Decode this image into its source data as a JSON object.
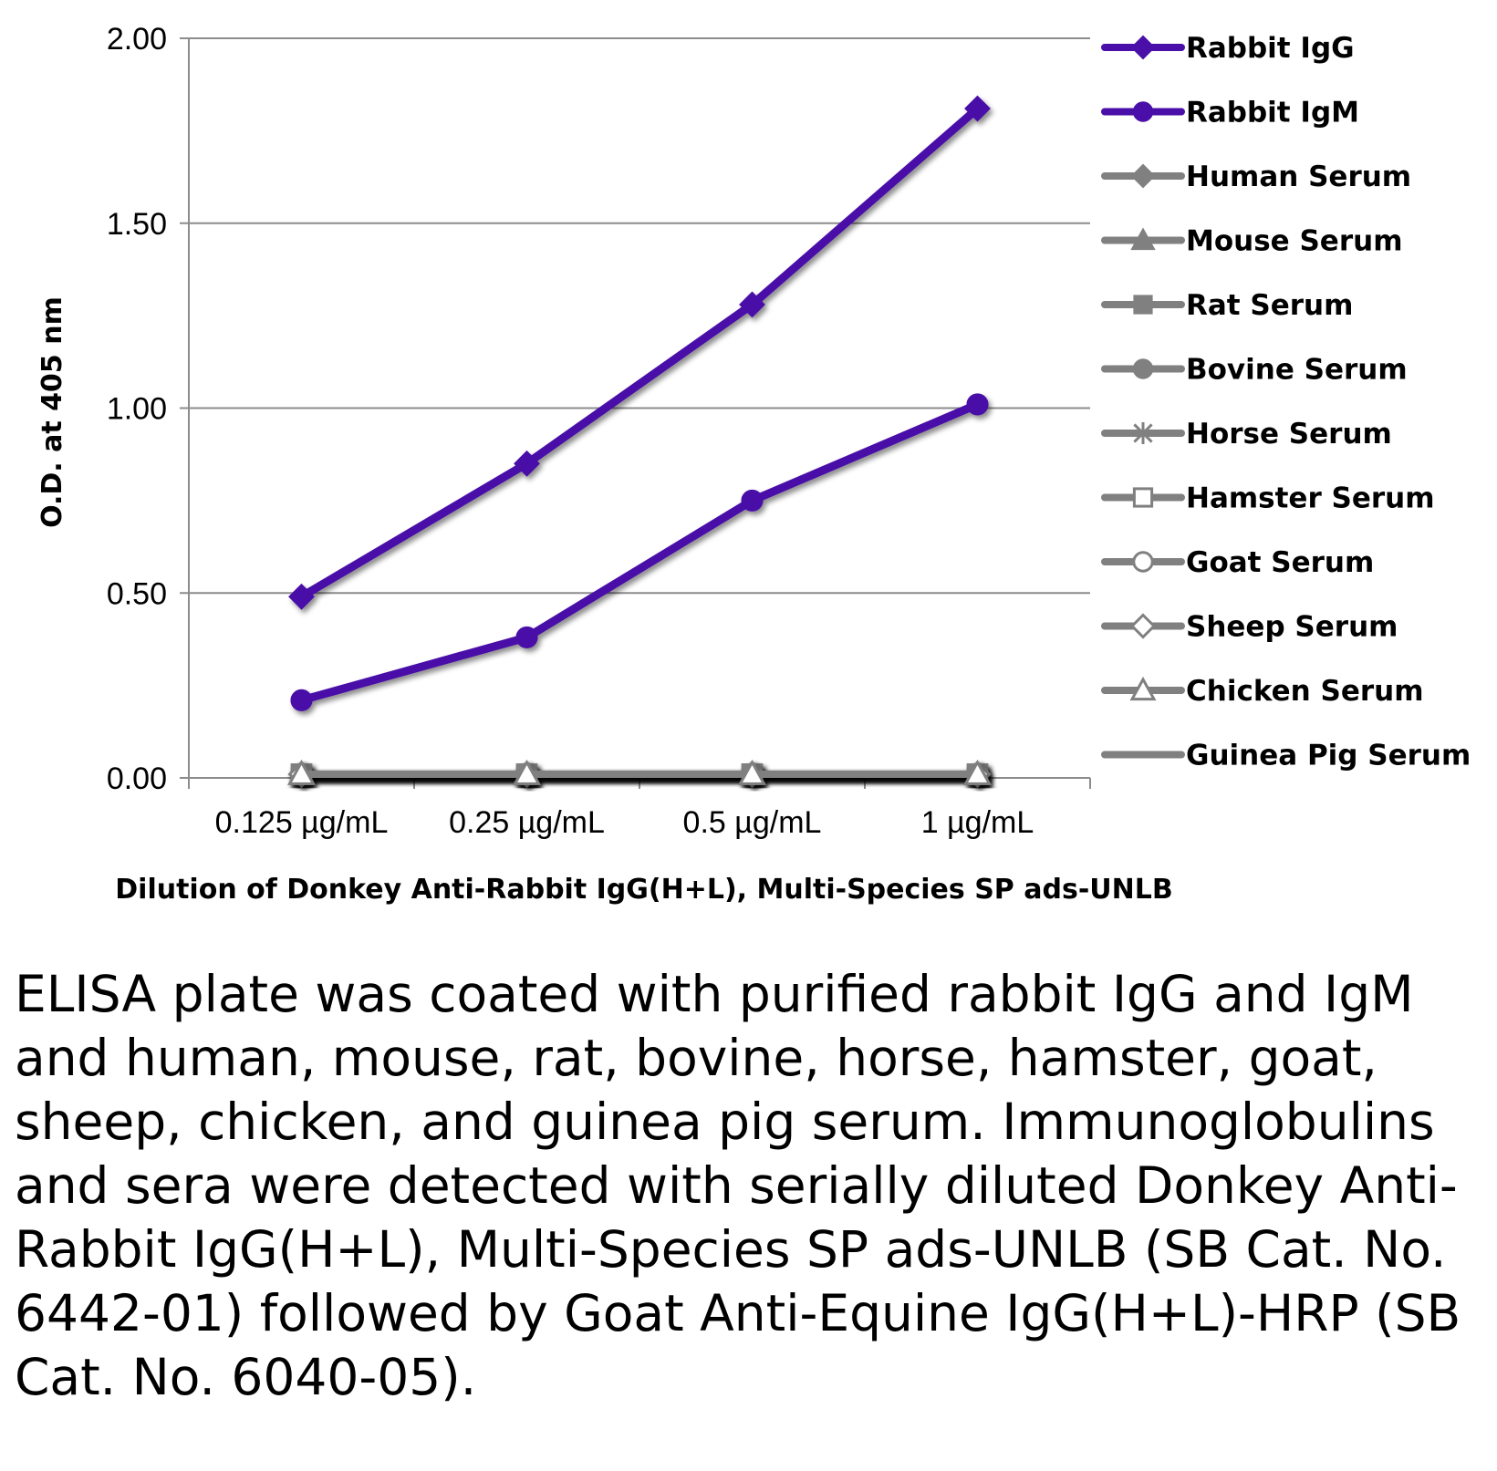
{
  "chart_data": {
    "type": "line",
    "xlabel": "Dilution of Donkey Anti-Rabbit IgG(H+L), Multi-Species SP ads-UNLB",
    "ylabel": "O.D. at 405 nm",
    "ylim": [
      0,
      2
    ],
    "yticks": [
      "0.00",
      "0.50",
      "1.00",
      "1.50",
      "2.00"
    ],
    "categories": [
      "0.125 µg/mL",
      "0.25 µg/mL",
      "0.5 µg/mL",
      "1 µg/mL"
    ],
    "grid": true,
    "legend_position": "right",
    "series": [
      {
        "name": "Rabbit IgG",
        "values": [
          0.49,
          0.85,
          1.28,
          1.81
        ],
        "color": "#4a0fa8",
        "marker": "diamond"
      },
      {
        "name": "Rabbit IgM",
        "values": [
          0.21,
          0.38,
          0.75,
          1.01
        ],
        "color": "#4a0fa8",
        "marker": "circle"
      },
      {
        "name": "Human Serum",
        "values": [
          0.01,
          0.01,
          0.01,
          0.01
        ],
        "color": "#808080",
        "marker": "diamond"
      },
      {
        "name": "Mouse Serum",
        "values": [
          0.01,
          0.01,
          0.01,
          0.01
        ],
        "color": "#808080",
        "marker": "triangle"
      },
      {
        "name": "Rat Serum",
        "values": [
          0.01,
          0.01,
          0.01,
          0.01
        ],
        "color": "#808080",
        "marker": "square"
      },
      {
        "name": "Bovine Serum",
        "values": [
          0.01,
          0.01,
          0.01,
          0.01
        ],
        "color": "#808080",
        "marker": "circle"
      },
      {
        "name": "Horse Serum",
        "values": [
          0.01,
          0.01,
          0.01,
          0.01
        ],
        "color": "#808080",
        "marker": "star"
      },
      {
        "name": "Hamster Serum",
        "values": [
          0.01,
          0.01,
          0.01,
          0.01
        ],
        "color": "#808080",
        "marker": "square-open"
      },
      {
        "name": "Goat Serum",
        "values": [
          0.01,
          0.01,
          0.01,
          0.01
        ],
        "color": "#808080",
        "marker": "circle-open"
      },
      {
        "name": "Sheep Serum",
        "values": [
          0.01,
          0.01,
          0.01,
          0.01
        ],
        "color": "#808080",
        "marker": "diamond-open"
      },
      {
        "name": "Chicken Serum",
        "values": [
          0.01,
          0.01,
          0.01,
          0.01
        ],
        "color": "#808080",
        "marker": "triangle-open"
      },
      {
        "name": "Guinea Pig Serum",
        "values": [
          0.01,
          0.01,
          0.01,
          0.01
        ],
        "color": "#808080",
        "marker": "none"
      }
    ]
  },
  "caption": "ELISA plate was coated with purified rabbit IgG and IgM and human, mouse, rat, bovine, horse, hamster, goat, sheep, chicken, and guinea pig serum.  Immunoglobulins and sera were detected with serially diluted Donkey Anti-Rabbit IgG(H+L), Multi-Species SP ads-UNLB (SB Cat. No. 6442-01) followed by Goat Anti-Equine IgG(H+L)-HRP (SB Cat. No. 6040-05)."
}
